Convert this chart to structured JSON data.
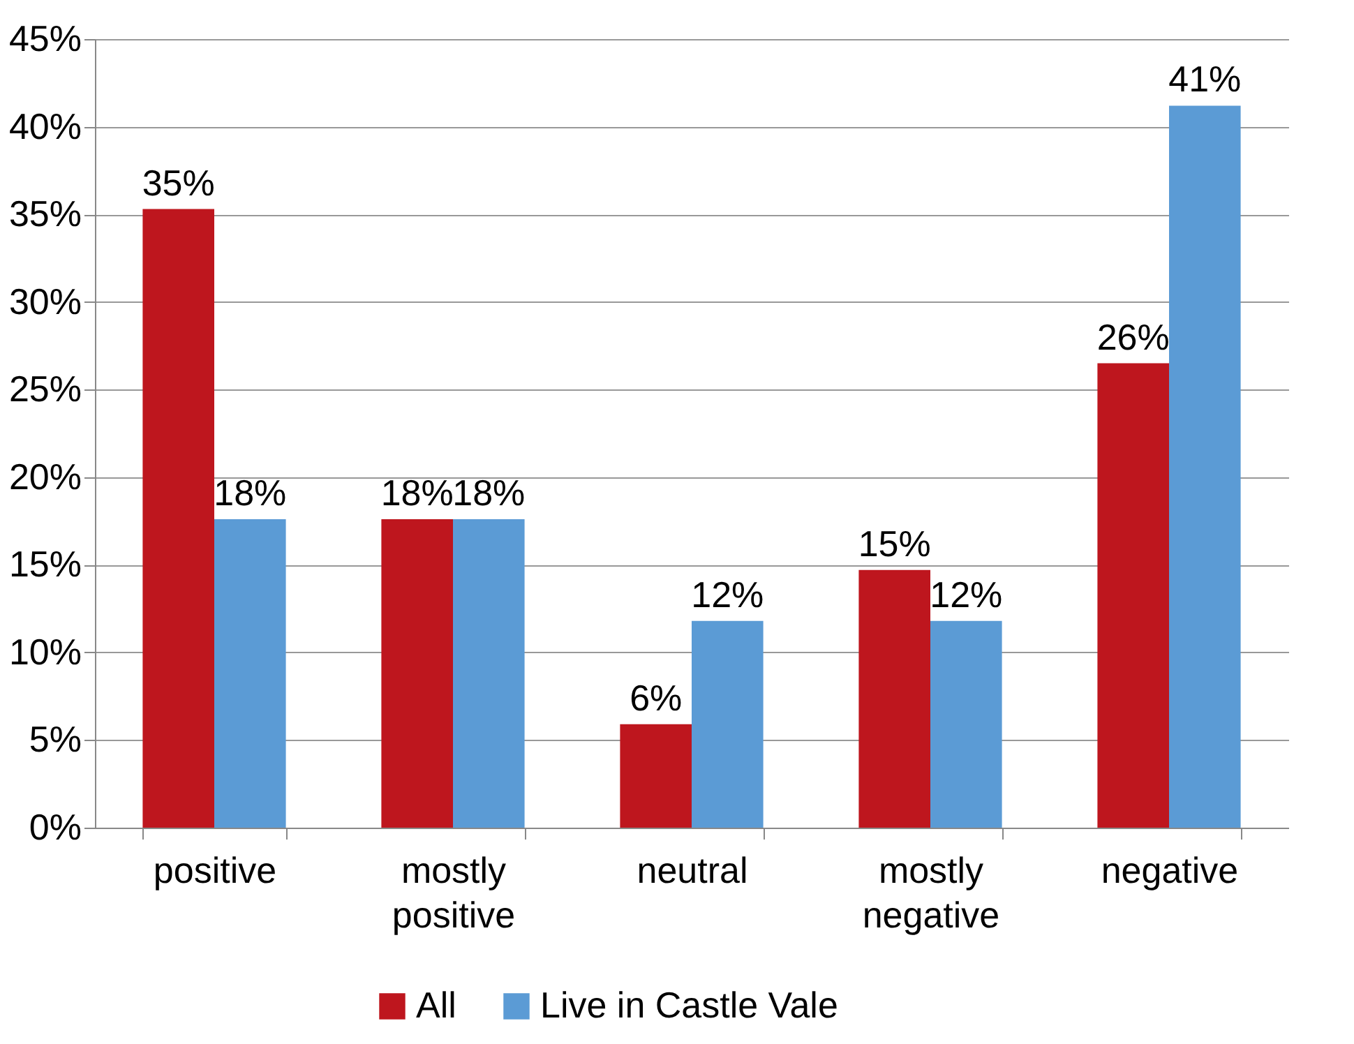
{
  "chart_data": {
    "type": "bar",
    "categories": [
      "positive",
      "mostly positive",
      "neutral",
      "mostly negative",
      "negative"
    ],
    "series": [
      {
        "name": "All",
        "color": "#be161e",
        "values": [
          35.3,
          17.6,
          5.9,
          14.7,
          26.5
        ],
        "value_labels": [
          "35%",
          "18%",
          "6%",
          "15%",
          "26%"
        ]
      },
      {
        "name": "Live in Castle Vale",
        "color": "#5b9bd5",
        "values": [
          17.6,
          17.6,
          11.8,
          11.8,
          41.2
        ],
        "value_labels": [
          "18%",
          "18%",
          "12%",
          "12%",
          "41%"
        ]
      }
    ],
    "ylim": [
      0,
      45
    ],
    "yticks": [
      {
        "value": 0,
        "label": "0%"
      },
      {
        "value": 5,
        "label": "5%"
      },
      {
        "value": 10,
        "label": "10%"
      },
      {
        "value": 15,
        "label": "15%"
      },
      {
        "value": 20,
        "label": "20%"
      },
      {
        "value": 25,
        "label": "25%"
      },
      {
        "value": 30,
        "label": "30%"
      },
      {
        "value": 35,
        "label": "35%"
      },
      {
        "value": 40,
        "label": "40%"
      },
      {
        "value": 45,
        "label": "45%"
      }
    ],
    "grid": "y",
    "legend": "bottom"
  }
}
